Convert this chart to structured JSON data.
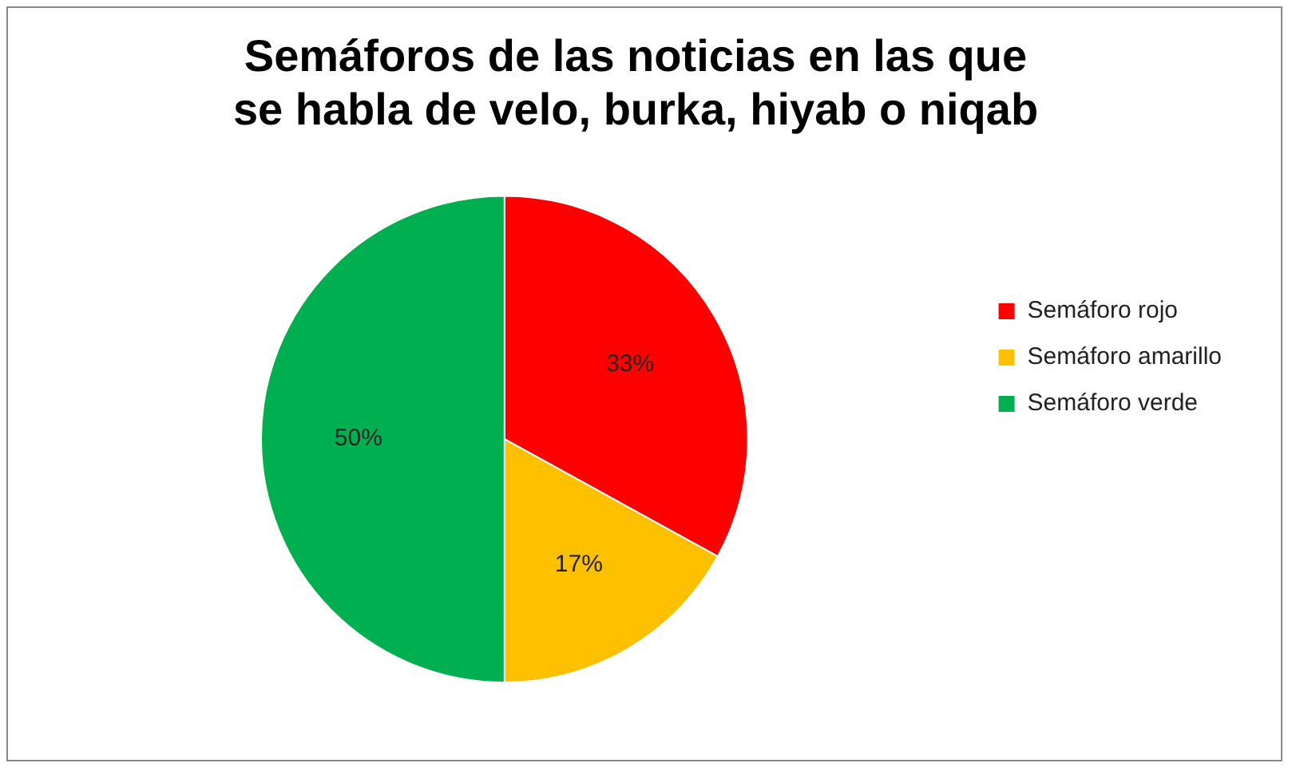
{
  "chart_data": {
    "type": "pie",
    "title": "Semáforos de las noticias en las que se habla de velo, burka, hiyab o niqab",
    "categories": [
      "Semáforo rojo",
      "Semáforo amarillo",
      "Semáforo verde"
    ],
    "values": [
      33,
      17,
      50
    ],
    "colors": [
      "#ff0000",
      "#ffc000",
      "#00b050"
    ],
    "value_labels": [
      "33%",
      "17%",
      "50%"
    ],
    "legend": "right"
  }
}
